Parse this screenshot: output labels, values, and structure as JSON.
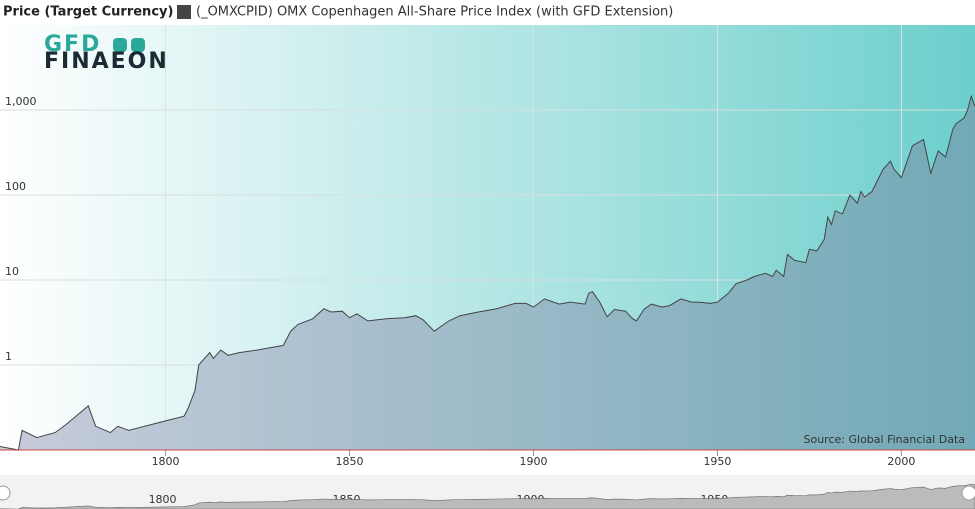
{
  "chart_data": {
    "type": "area",
    "title": "Price (Target Currency)",
    "logo": [
      "GFD",
      "FINAEON"
    ],
    "source": "Source: Global Financial Data",
    "log_scale": true,
    "grid": true,
    "xlim": [
      1755,
      2020
    ],
    "xticks": [
      1800,
      1850,
      1900,
      1950,
      2000
    ],
    "ylim": [
      0.1,
      10000
    ],
    "yticks": [
      1,
      10,
      100,
      {
        "value": 1000,
        "label": "1,000"
      }
    ],
    "series": [
      {
        "name": "(_OMXCPID) OMX Copenhagen All-Share Price Index (with GFD Extension)",
        "color": "#444444",
        "x": [
          1755,
          1760,
          1761,
          1765,
          1770,
          1773,
          1779,
          1781,
          1785,
          1787,
          1790,
          1800,
          1805,
          1806,
          1808,
          1809,
          1812,
          1813,
          1815,
          1817,
          1820,
          1825,
          1832,
          1834,
          1836,
          1840,
          1843,
          1845,
          1848,
          1850,
          1852,
          1855,
          1860,
          1865,
          1868,
          1870,
          1873,
          1877,
          1880,
          1885,
          1890,
          1895,
          1898,
          1900,
          1903,
          1907,
          1910,
          1914,
          1915,
          1916,
          1918,
          1920,
          1922,
          1925,
          1927,
          1928,
          1930,
          1932,
          1935,
          1937,
          1940,
          1943,
          1945,
          1948,
          1950,
          1953,
          1955,
          1958,
          1960,
          1963,
          1965,
          1966,
          1968,
          1969,
          1971,
          1974,
          1975,
          1977,
          1979,
          1980,
          1981,
          1982,
          1984,
          1986,
          1988,
          1989,
          1990,
          1992,
          1995,
          1997,
          1998,
          2000,
          2003,
          2006,
          2008,
          2010,
          2012,
          2014,
          2015,
          2017,
          2018,
          2019,
          2020
        ],
        "values": [
          0.11,
          0.1,
          0.17,
          0.14,
          0.16,
          0.2,
          0.33,
          0.19,
          0.16,
          0.19,
          0.17,
          0.22,
          0.25,
          0.3,
          0.5,
          1.0,
          1.4,
          1.2,
          1.5,
          1.3,
          1.4,
          1.5,
          1.7,
          2.5,
          3,
          3.5,
          4.6,
          4.2,
          4.3,
          3.6,
          4,
          3.3,
          3.5,
          3.6,
          3.8,
          3.4,
          2.5,
          3.3,
          3.8,
          4.2,
          4.6,
          5.3,
          5.3,
          4.8,
          6,
          5.2,
          5.5,
          5.2,
          7,
          7.3,
          5.5,
          3.7,
          4.5,
          4.3,
          3.5,
          3.3,
          4.5,
          5.2,
          4.8,
          5,
          6,
          5.5,
          5.5,
          5.3,
          5.5,
          7,
          9,
          10,
          11,
          12,
          11,
          13,
          11,
          20,
          17,
          16,
          23,
          22,
          30,
          55,
          45,
          65,
          60,
          100,
          80,
          110,
          95,
          110,
          200,
          250,
          200,
          160,
          380,
          450,
          180,
          330,
          280,
          600,
          700,
          800,
          1000,
          1450,
          1100
        ]
      }
    ]
  }
}
